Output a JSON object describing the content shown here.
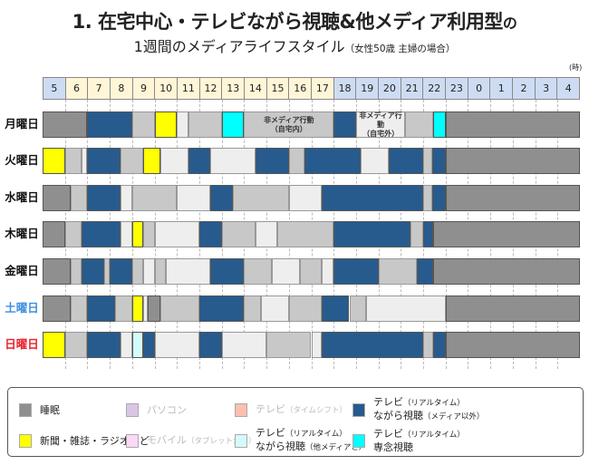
{
  "title": {
    "main": "1. 在宅中心・テレビながら視聴&他メディア利用型",
    "suffix": "の"
  },
  "subtitle": {
    "main": "1週間のメディアライフスタイル",
    "note": "（女性50歳 主婦の場合）"
  },
  "chart_data": {
    "type": "timeline",
    "unit_label": "(時)",
    "hours": [
      "5",
      "6",
      "7",
      "8",
      "9",
      "10",
      "11",
      "12",
      "13",
      "14",
      "15",
      "16",
      "17",
      "18",
      "19",
      "20",
      "21",
      "22",
      "23",
      "0",
      "1",
      "2",
      "3",
      "4"
    ],
    "hour_colors": {
      "day": "#fff6d8",
      "night": "#cddcf2"
    },
    "categories": {
      "s": {
        "label": "睡眠",
        "color": "#8f8f8f"
      },
      "y": {
        "label": "新聞・雑誌・ラジオなど",
        "color": "#ffff00"
      },
      "b": {
        "label": "テレビ（リアルタイム）ながら視聴（メディア以外）",
        "color": "#275b8e"
      },
      "c": {
        "label": "テレビ（リアルタイム）専念視聴",
        "color": "#00ffff"
      },
      "lc": {
        "label": "テレビ（リアルタイム）ながら視聴（他メディアと）",
        "color": "#d4fbfb"
      },
      "g": {
        "label": "非メディア行動（自宅内）",
        "color": "#c8c8c8"
      },
      "w": {
        "label": "非メディア行動（自宅外）",
        "color": "#eeeeee"
      }
    },
    "days": [
      {
        "label": "月曜日",
        "color": "#111111",
        "segments": [
          {
            "t": "s",
            "start": 5,
            "end": 7
          },
          {
            "t": "b",
            "start": 7,
            "end": 9
          },
          {
            "t": "g",
            "start": 9,
            "end": 10
          },
          {
            "t": "y",
            "start": 10,
            "end": 11
          },
          {
            "t": "w",
            "start": 11,
            "end": 11.5
          },
          {
            "t": "g",
            "start": 11.5,
            "end": 13
          },
          {
            "t": "c",
            "start": 13,
            "end": 14
          },
          {
            "t": "g",
            "start": 14,
            "end": 18,
            "label1": "非メディア行動",
            "label2": "（自宅内）"
          },
          {
            "t": "b",
            "start": 18,
            "end": 19
          },
          {
            "t": "w",
            "start": 19,
            "end": 21.2,
            "label1": "非メディア行動",
            "label2": "（自宅外）"
          },
          {
            "t": "g",
            "start": 21.2,
            "end": 22.45
          },
          {
            "t": "c",
            "start": 22.45,
            "end": 23
          },
          {
            "t": "s",
            "start": 23,
            "end": 29
          }
        ]
      },
      {
        "label": "火曜日",
        "color": "#111111",
        "segments": [
          {
            "t": "y",
            "start": 5,
            "end": 6
          },
          {
            "t": "g",
            "start": 6,
            "end": 6.75
          },
          {
            "t": "w",
            "start": 6.75,
            "end": 7
          },
          {
            "t": "b",
            "start": 7,
            "end": 8.5
          },
          {
            "t": "g",
            "start": 8.5,
            "end": 9.5
          },
          {
            "t": "y",
            "start": 9.5,
            "end": 10.25
          },
          {
            "t": "w",
            "start": 10.25,
            "end": 11.5
          },
          {
            "t": "b",
            "start": 11.5,
            "end": 12.5
          },
          {
            "t": "w",
            "start": 12.5,
            "end": 14.5
          },
          {
            "t": "b",
            "start": 14.5,
            "end": 16
          },
          {
            "t": "g",
            "start": 16,
            "end": 16.7
          },
          {
            "t": "b",
            "start": 16.7,
            "end": 19.2
          },
          {
            "t": "w",
            "start": 19.2,
            "end": 20.45
          },
          {
            "t": "b",
            "start": 20.45,
            "end": 22
          },
          {
            "t": "g",
            "start": 22,
            "end": 22.4
          },
          {
            "t": "b",
            "start": 22.4,
            "end": 23
          },
          {
            "t": "s",
            "start": 23,
            "end": 29
          }
        ]
      },
      {
        "label": "水曜日",
        "color": "#111111",
        "segments": [
          {
            "t": "s",
            "start": 5,
            "end": 6.25
          },
          {
            "t": "g",
            "start": 6.25,
            "end": 7
          },
          {
            "t": "b",
            "start": 7,
            "end": 8.5
          },
          {
            "t": "w",
            "start": 8.5,
            "end": 9
          },
          {
            "t": "g",
            "start": 9,
            "end": 11
          },
          {
            "t": "w",
            "start": 11,
            "end": 12.5
          },
          {
            "t": "b",
            "start": 12.5,
            "end": 13.5
          },
          {
            "t": "g",
            "start": 13.5,
            "end": 16
          },
          {
            "t": "w",
            "start": 16,
            "end": 17.45
          },
          {
            "t": "b",
            "start": 17.45,
            "end": 22
          },
          {
            "t": "g",
            "start": 22,
            "end": 22.4
          },
          {
            "t": "b",
            "start": 22.4,
            "end": 23
          },
          {
            "t": "s",
            "start": 23,
            "end": 29
          }
        ]
      },
      {
        "label": "木曜日",
        "color": "#111111",
        "segments": [
          {
            "t": "s",
            "start": 5,
            "end": 6
          },
          {
            "t": "g",
            "start": 6,
            "end": 6.75
          },
          {
            "t": "b",
            "start": 6.75,
            "end": 8.5
          },
          {
            "t": "w",
            "start": 8.5,
            "end": 9
          },
          {
            "t": "y",
            "start": 9,
            "end": 9.5
          },
          {
            "t": "g",
            "start": 9.5,
            "end": 10
          },
          {
            "t": "w",
            "start": 10,
            "end": 12
          },
          {
            "t": "b",
            "start": 12,
            "end": 13
          },
          {
            "t": "g",
            "start": 13,
            "end": 14.5
          },
          {
            "t": "w",
            "start": 14.5,
            "end": 15.5
          },
          {
            "t": "g",
            "start": 15.5,
            "end": 18
          },
          {
            "t": "b",
            "start": 18,
            "end": 21.45
          },
          {
            "t": "g",
            "start": 21.45,
            "end": 22
          },
          {
            "t": "b",
            "start": 22,
            "end": 22.45
          },
          {
            "t": "s",
            "start": 22.45,
            "end": 29
          }
        ]
      },
      {
        "label": "金曜日",
        "color": "#111111",
        "segments": [
          {
            "t": "s",
            "start": 5,
            "end": 6.25
          },
          {
            "t": "g",
            "start": 6.25,
            "end": 6.75
          },
          {
            "t": "b",
            "start": 6.75,
            "end": 7.75
          },
          {
            "t": "g",
            "start": 7.75,
            "end": 8
          },
          {
            "t": "b",
            "start": 8,
            "end": 9
          },
          {
            "t": "g",
            "start": 9,
            "end": 9.5
          },
          {
            "t": "w",
            "start": 9.5,
            "end": 10
          },
          {
            "t": "g",
            "start": 10,
            "end": 10.5
          },
          {
            "t": "w",
            "start": 10.5,
            "end": 12.5
          },
          {
            "t": "b",
            "start": 12.5,
            "end": 14
          },
          {
            "t": "g",
            "start": 14,
            "end": 15.25
          },
          {
            "t": "w",
            "start": 15.25,
            "end": 16.5
          },
          {
            "t": "g",
            "start": 16.5,
            "end": 17.45
          },
          {
            "t": "w",
            "start": 17.45,
            "end": 18
          },
          {
            "t": "b",
            "start": 18,
            "end": 20
          },
          {
            "t": "g",
            "start": 20,
            "end": 21.7
          },
          {
            "t": "b",
            "start": 21.7,
            "end": 22.45
          },
          {
            "t": "s",
            "start": 22.45,
            "end": 29
          }
        ]
      },
      {
        "label": "土曜日",
        "color": "#3b8fe0",
        "segments": [
          {
            "t": "s",
            "start": 5,
            "end": 6.25
          },
          {
            "t": "g",
            "start": 6.25,
            "end": 7
          },
          {
            "t": "b",
            "start": 7,
            "end": 8.25
          },
          {
            "t": "g",
            "start": 8.25,
            "end": 9
          },
          {
            "t": "y",
            "start": 9,
            "end": 9.5
          },
          {
            "t": "w",
            "start": 9.5,
            "end": 9.7
          },
          {
            "t": "s",
            "start": 9.7,
            "end": 10.25
          },
          {
            "t": "g",
            "start": 10.25,
            "end": 12
          },
          {
            "t": "b",
            "start": 12,
            "end": 14
          },
          {
            "t": "g",
            "start": 14,
            "end": 14.75
          },
          {
            "t": "w",
            "start": 14.75,
            "end": 16
          },
          {
            "t": "g",
            "start": 16,
            "end": 17.45
          },
          {
            "t": "b",
            "start": 17.45,
            "end": 18.7
          },
          {
            "t": "g",
            "start": 18.7,
            "end": 19.45
          },
          {
            "t": "w",
            "start": 19.45,
            "end": 23
          },
          {
            "t": "s",
            "start": 23,
            "end": 29
          }
        ]
      },
      {
        "label": "日曜日",
        "color": "#e8202a",
        "segments": [
          {
            "t": "y",
            "start": 5,
            "end": 6
          },
          {
            "t": "g",
            "start": 6,
            "end": 7
          },
          {
            "t": "b",
            "start": 7,
            "end": 8.5
          },
          {
            "t": "w",
            "start": 8.5,
            "end": 9
          },
          {
            "t": "lc",
            "start": 9,
            "end": 9.5
          },
          {
            "t": "b",
            "start": 9.5,
            "end": 10
          },
          {
            "t": "w",
            "start": 10,
            "end": 12
          },
          {
            "t": "b",
            "start": 12,
            "end": 13
          },
          {
            "t": "w",
            "start": 13,
            "end": 15
          },
          {
            "t": "g",
            "start": 15,
            "end": 17
          },
          {
            "t": "w",
            "start": 17,
            "end": 17.45
          },
          {
            "t": "b",
            "start": 17.45,
            "end": 22
          },
          {
            "t": "g",
            "start": 22,
            "end": 22.45
          },
          {
            "t": "b",
            "start": 22.45,
            "end": 23
          },
          {
            "t": "s",
            "start": 23,
            "end": 29
          }
        ]
      }
    ]
  },
  "legend": [
    {
      "color": "#8f8f8f",
      "line1": "睡眠",
      "line1_small": "",
      "line2": "",
      "line2_small": "",
      "dim": false
    },
    {
      "color": "#d9c6e6",
      "line1": "パソコン",
      "line1_small": "",
      "line2": "",
      "line2_small": "",
      "dim": true
    },
    {
      "color": "#fcc0b0",
      "line1": "テレビ",
      "line1_small": "（タイムシフト）",
      "line2": "",
      "line2_small": "",
      "dim": true
    },
    {
      "color": "#275b8e",
      "line1": "テレビ",
      "line1_small": "（リアルタイム）",
      "line2": "ながら視聴",
      "line2_small": "（メディア以外）",
      "dim": false
    },
    {
      "color": "#ffff00",
      "line1": "新聞・雑誌・ラジオなど",
      "line1_small": "",
      "line2": "",
      "line2_small": "",
      "dim": false
    },
    {
      "color": "#fcd8f6",
      "line1": "モバイル",
      "line1_small": "（タブレット含む）",
      "line2": "",
      "line2_small": "",
      "dim": true
    },
    {
      "color": "#d4fbfb",
      "line1": "テレビ",
      "line1_small": "（リアルタイム）",
      "line2": "ながら視聴",
      "line2_small": "（他メディアと）",
      "dim": false
    },
    {
      "color": "#00ffff",
      "line1": "テレビ",
      "line1_small": "（リアルタイム）",
      "line2": "専念視聴",
      "line2_small": "",
      "dim": false
    }
  ]
}
